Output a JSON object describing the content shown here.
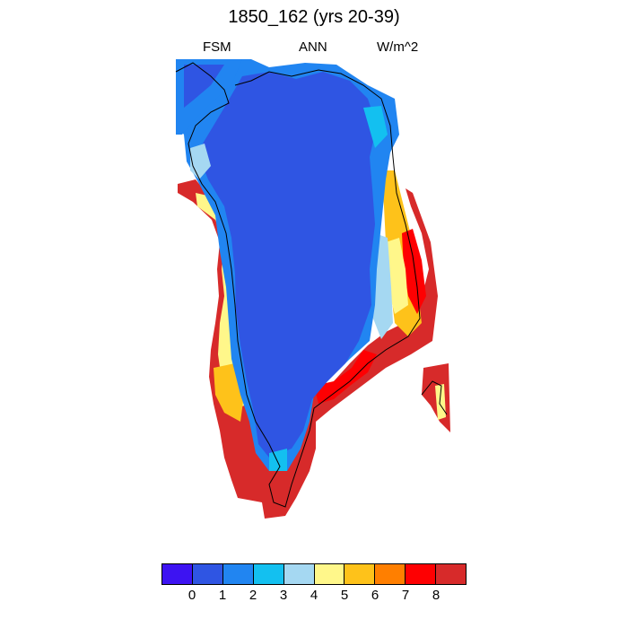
{
  "title": "1850_162 (yrs 20-39)",
  "subtitle": {
    "left": "FSM",
    "center": "ANN",
    "right": "W/m^2"
  },
  "colorbar": {
    "colors": [
      "#3d13f2",
      "#2f55e3",
      "#2185f1",
      "#13c0f0",
      "#a5d8f2",
      "#fff78a",
      "#fec21a",
      "#ff7f00",
      "#fe0002",
      "#d72a2a"
    ],
    "tick_labels": [
      "0",
      "1",
      "2",
      "3",
      "4",
      "5",
      "6",
      "7",
      "8"
    ]
  },
  "map": {
    "region": "Greenland",
    "variable_level_colors": {
      "interior": "#2f55e3",
      "inner_margin": "#2185f1",
      "coastal_light": "#a5d8f2",
      "coastal_yellow": "#fff78a",
      "coastal_orange": "#fec21a",
      "coastal_red": "#d72a2a"
    }
  }
}
